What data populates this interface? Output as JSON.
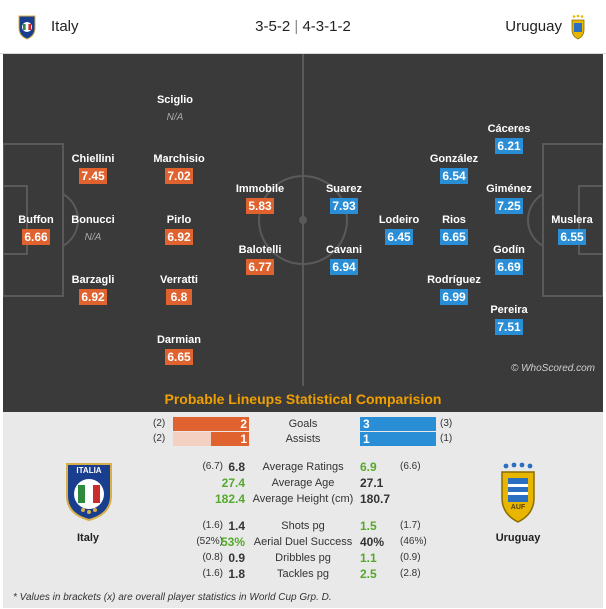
{
  "header": {
    "home_team": "Italy",
    "away_team": "Uruguay",
    "home_formation": "3-5-2",
    "separator": "|",
    "away_formation": "4-3-1-2"
  },
  "colors": {
    "italy_rating": "#e0622e",
    "uruguay_rating": "#2a8ed6",
    "pitch": "#3a3a3a",
    "title": "#f0a000",
    "highlight": "#55a92a"
  },
  "pitch": {
    "watermark": "© WhoScored.com",
    "italy_players": [
      {
        "name": "Buffon",
        "rating": "6.66"
      },
      {
        "name": "Chiellini",
        "rating": "7.45"
      },
      {
        "name": "Bonucci",
        "rating": "N/A"
      },
      {
        "name": "Barzagli",
        "rating": "6.92"
      },
      {
        "name": "Sciglio",
        "rating": "N/A"
      },
      {
        "name": "Marchisio",
        "rating": "7.02"
      },
      {
        "name": "Pirlo",
        "rating": "6.92"
      },
      {
        "name": "Verratti",
        "rating": "6.8"
      },
      {
        "name": "Darmian",
        "rating": "6.65"
      },
      {
        "name": "Immobile",
        "rating": "5.83"
      },
      {
        "name": "Balotelli",
        "rating": "6.77"
      }
    ],
    "uruguay_players": [
      {
        "name": "Suarez",
        "rating": "7.93"
      },
      {
        "name": "Cavani",
        "rating": "6.94"
      },
      {
        "name": "Lodeiro",
        "rating": "6.45"
      },
      {
        "name": "González",
        "rating": "6.54"
      },
      {
        "name": "Rios",
        "rating": "6.65"
      },
      {
        "name": "Rodríguez",
        "rating": "6.99"
      },
      {
        "name": "Cáceres",
        "rating": "6.21"
      },
      {
        "name": "Giménez",
        "rating": "7.25"
      },
      {
        "name": "Godín",
        "rating": "6.69"
      },
      {
        "name": "Pereira",
        "rating": "7.51"
      },
      {
        "name": "Muslera",
        "rating": "6.55"
      }
    ]
  },
  "stats": {
    "title": "Probable Lineups Statistical Comparision",
    "home_label": "Italy",
    "away_label": "Uruguay",
    "crest_text_italy": "ITALIA",
    "crest_text_uruguay": "AUF",
    "goals": {
      "label": "Goals",
      "home": "2",
      "away": "3",
      "home_bracket": "(2)",
      "away_bracket": "(3)",
      "home_fraction": 1.0,
      "away_fraction": 1.0
    },
    "assists": {
      "label": "Assists",
      "home": "1",
      "away": "1",
      "home_bracket": "(2)",
      "away_bracket": "(1)",
      "home_fraction": 0.5,
      "away_fraction": 1.0
    },
    "rows": [
      {
        "label": "Average Ratings",
        "home_sub": "(6.7)",
        "home": "6.8",
        "away": "6.9",
        "away_sub": "(6.6)",
        "home_green": false,
        "away_green": true
      },
      {
        "label": "Average Age",
        "home_sub": "",
        "home": "27.4",
        "away": "27.1",
        "away_sub": "",
        "home_green": true,
        "away_green": false
      },
      {
        "label": "Average Height (cm)",
        "home_sub": "",
        "home": "182.4",
        "away": "180.7",
        "away_sub": "",
        "home_green": true,
        "away_green": false
      },
      {
        "label": "Shots pg",
        "home_sub": "(1.6)",
        "home": "1.4",
        "away": "1.5",
        "away_sub": "(1.7)",
        "home_green": false,
        "away_green": true
      },
      {
        "label": "Aerial Duel Success",
        "home_sub": "(52%)",
        "home": "53%",
        "away": "40%",
        "away_sub": "(46%)",
        "home_green": true,
        "away_green": false
      },
      {
        "label": "Dribbles pg",
        "home_sub": "(0.8)",
        "home": "0.9",
        "away": "1.1",
        "away_sub": "(0.9)",
        "home_green": false,
        "away_green": true
      },
      {
        "label": "Tackles pg",
        "home_sub": "(1.6)",
        "home": "1.8",
        "away": "2.5",
        "away_sub": "(2.8)",
        "home_green": false,
        "away_green": true
      }
    ],
    "footnote": "* Values in brackets (x) are overall player statistics in World Cup Grp. D."
  }
}
